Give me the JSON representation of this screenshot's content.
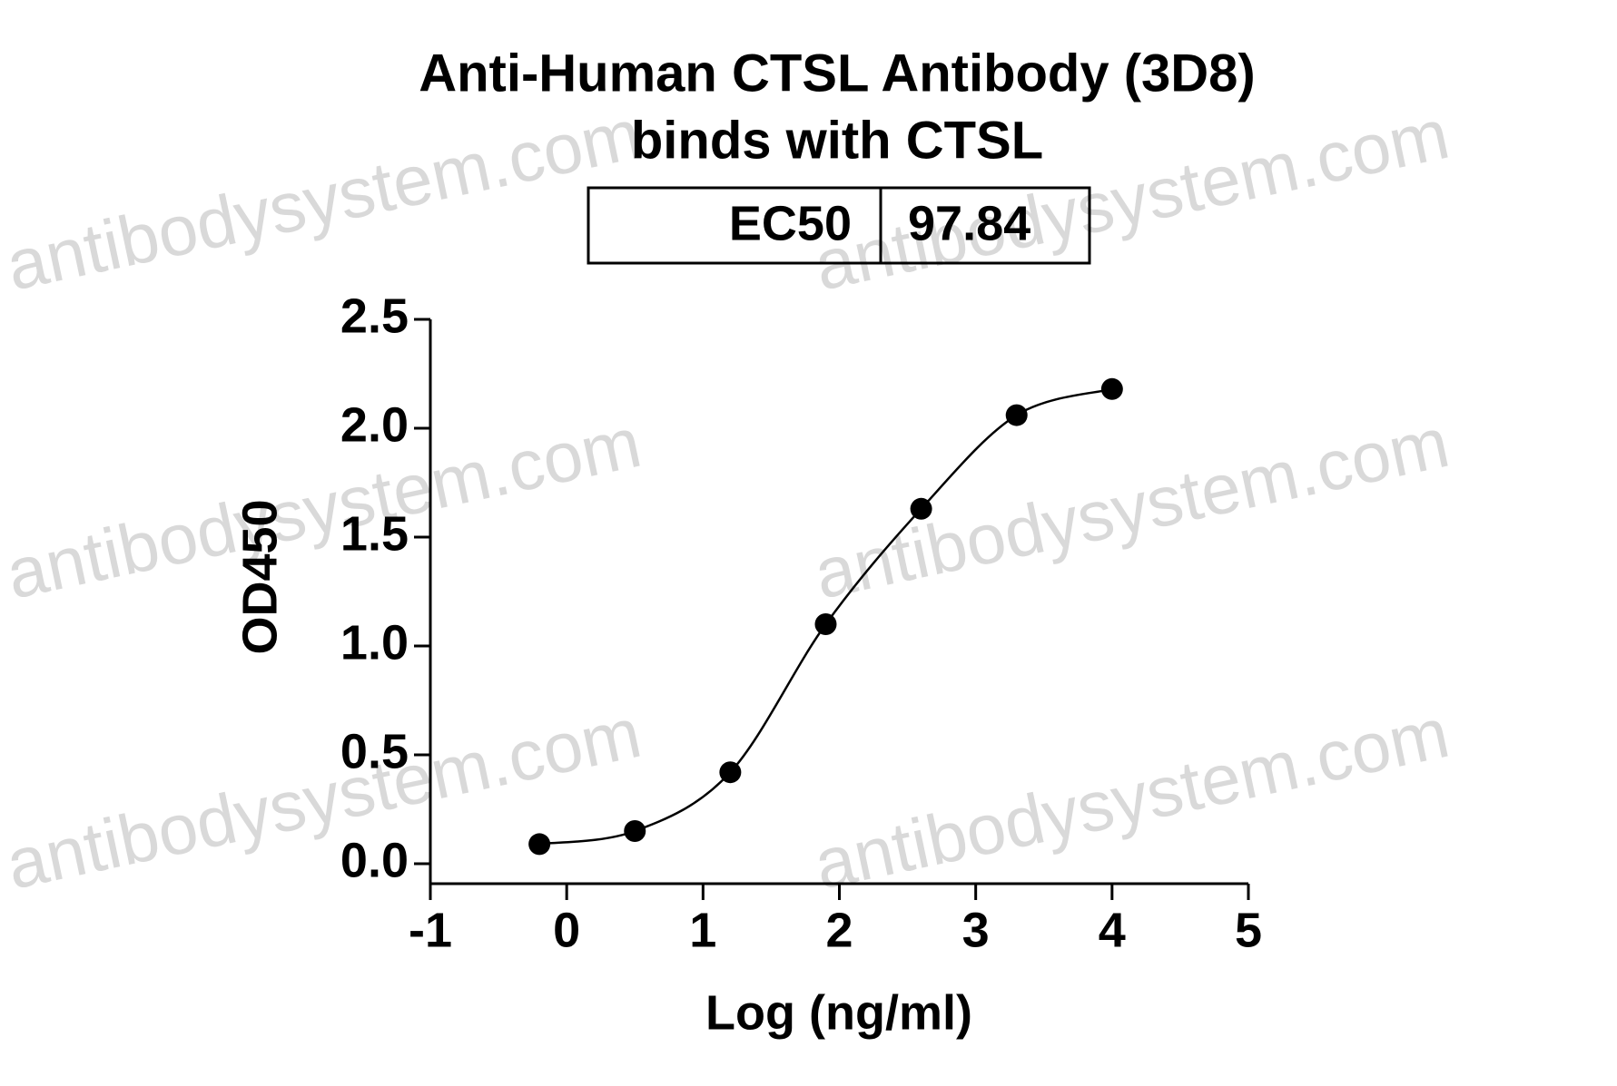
{
  "chart_data": {
    "type": "scatter",
    "title": [
      "Anti-Human CTSL Antibody (3D8)",
      "binds with CTSL"
    ],
    "table": {
      "label": "EC50",
      "value": "97.84"
    },
    "watermark": "antibodysystem.com",
    "x_label": "Log (ng/ml)",
    "y_label": "OD450",
    "color": "#000000",
    "series": [
      {
        "x": [
          -0.2,
          0.5,
          1.2,
          1.9,
          2.6,
          3.3,
          4.0
        ],
        "values": [
          0.09,
          0.15,
          0.42,
          1.1,
          1.63,
          2.06,
          2.18
        ]
      }
    ],
    "xlim": [
      -1,
      5
    ],
    "xticks": [
      -1,
      0,
      1,
      2,
      3,
      4,
      5
    ],
    "ylim": [
      0,
      2.5
    ],
    "yticks": [
      {
        "value": 0,
        "label": "0.0"
      },
      0.5,
      {
        "value": 1,
        "label": "1.0"
      },
      1.5,
      {
        "value": 2,
        "label": "2.0"
      },
      2.5
    ]
  }
}
